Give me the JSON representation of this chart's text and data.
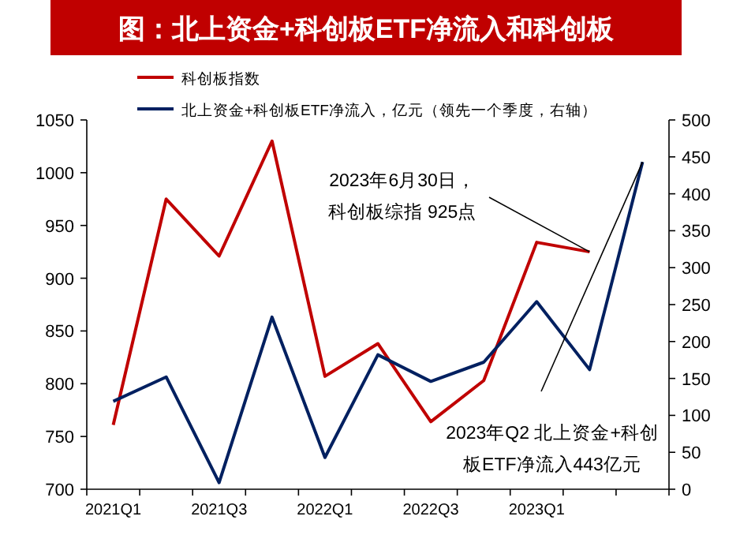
{
  "chart_data": {
    "type": "line",
    "title": "图：北上资金+科创板ETF净流入和科创板",
    "categories": [
      "2021Q1",
      null,
      "2021Q3",
      null,
      "2022Q1",
      null,
      "2022Q3",
      null,
      "2023Q1",
      null,
      null
    ],
    "series": [
      {
        "name": "科创板指数",
        "color": "#c00000",
        "values": [
          761,
          975,
          921,
          1030,
          807,
          838,
          764,
          803,
          934,
          925,
          null
        ]
      },
      {
        "name": "北上资金+科创板ETF净流入，亿元（领先一个季度，右轴）",
        "color": "#002060",
        "axis": "y2",
        "values": [
          119,
          152,
          9,
          233,
          43,
          182,
          146,
          172,
          254,
          162,
          443
        ]
      }
    ],
    "ylim": [
      700,
      1050
    ],
    "yticks": [
      700,
      750,
      800,
      850,
      900,
      950,
      1000,
      1050
    ],
    "y2lim": [
      0,
      500
    ],
    "y2ticks": [
      0,
      50,
      100,
      150,
      200,
      250,
      300,
      350,
      400,
      450,
      500
    ],
    "grid": false,
    "legend": "top",
    "marker": "none",
    "line_style": "solid",
    "annotations": [
      "2023年6月30日，科创板综指 925点",
      "2023年Q2 北上资金+科创板ETF净流入443亿元"
    ]
  }
}
